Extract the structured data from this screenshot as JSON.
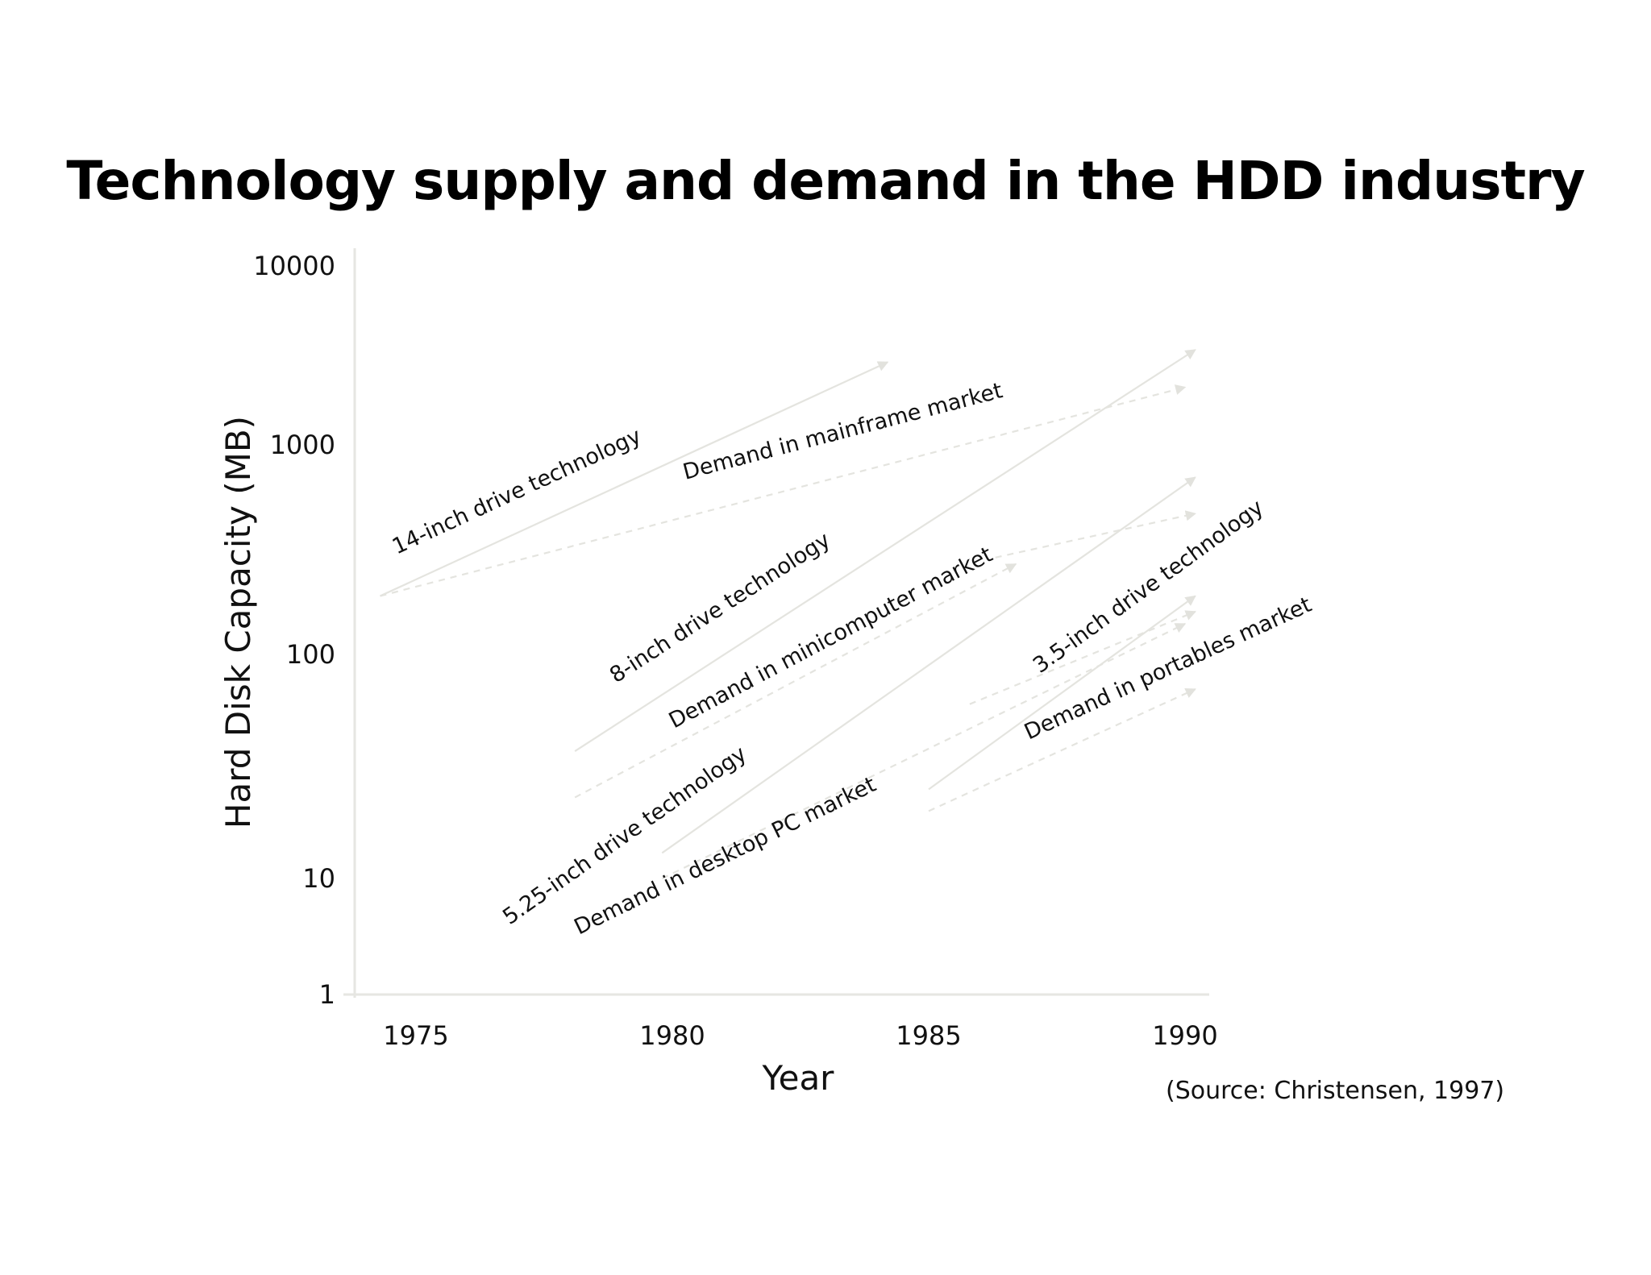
{
  "chart_data": {
    "type": "line",
    "title": "Technology supply and demand in the HDD industry",
    "xlabel": "Year",
    "ylabel": "Hard Disk Capacity (MB)",
    "yscale": "log",
    "xlim": [
      1974,
      1990.5
    ],
    "ylim": [
      1,
      10000
    ],
    "x_ticks": [
      "1975",
      "1980",
      "1985",
      "1990"
    ],
    "y_ticks": [
      "1",
      "10",
      "100",
      "1000",
      "10000"
    ],
    "grid": false,
    "legend": "none",
    "series": [
      {
        "name": "14-inch drive technology",
        "style": "solid",
        "x": [
          1974.3,
          1984.2
        ],
        "y": [
          190,
          2900
        ]
      },
      {
        "name": "Demand in mainframe market",
        "style": "dashed",
        "x": [
          1974.3,
          1990
        ],
        "y": [
          190,
          2100
        ]
      },
      {
        "name": "8-inch drive technology",
        "style": "solid",
        "x": [
          1978.1,
          1990.2
        ],
        "y": [
          37,
          3400
        ]
      },
      {
        "name": "Demand in minicomputer market",
        "style": "dashed",
        "x": [
          1978.1,
          1986.7
        ],
        "y": [
          23,
          270
        ]
      },
      {
        "name": "5.25-inch drive technology",
        "style": "solid",
        "x": [
          1979.8,
          1990.2
        ],
        "y": [
          13,
          700
        ]
      },
      {
        "name": "Demand in desktop PC market",
        "style": "dashed",
        "x": [
          1979.8,
          1990
        ],
        "y": [
          10,
          140
        ]
      },
      {
        "name": "3.5-inch drive technology",
        "style": "solid",
        "x": [
          1985,
          1990.2
        ],
        "y": [
          25,
          190
        ]
      },
      {
        "name": "Demand in portables market",
        "style": "dashed",
        "x": [
          1985,
          1990.2
        ],
        "y": [
          20,
          70
        ]
      },
      {
        "name": "",
        "style": "dashed",
        "x": [
          1986.3,
          1990.2
        ],
        "y": [
          290,
          470
        ]
      },
      {
        "name": "",
        "style": "dashed",
        "x": [
          1985.8,
          1990.2
        ],
        "y": [
          60,
          160
        ]
      }
    ]
  },
  "source_note": "(Source: Christensen, 1997)",
  "colors": {
    "line": "#e4e4df",
    "axis": "#e6e6e2",
    "text": "#111111"
  }
}
